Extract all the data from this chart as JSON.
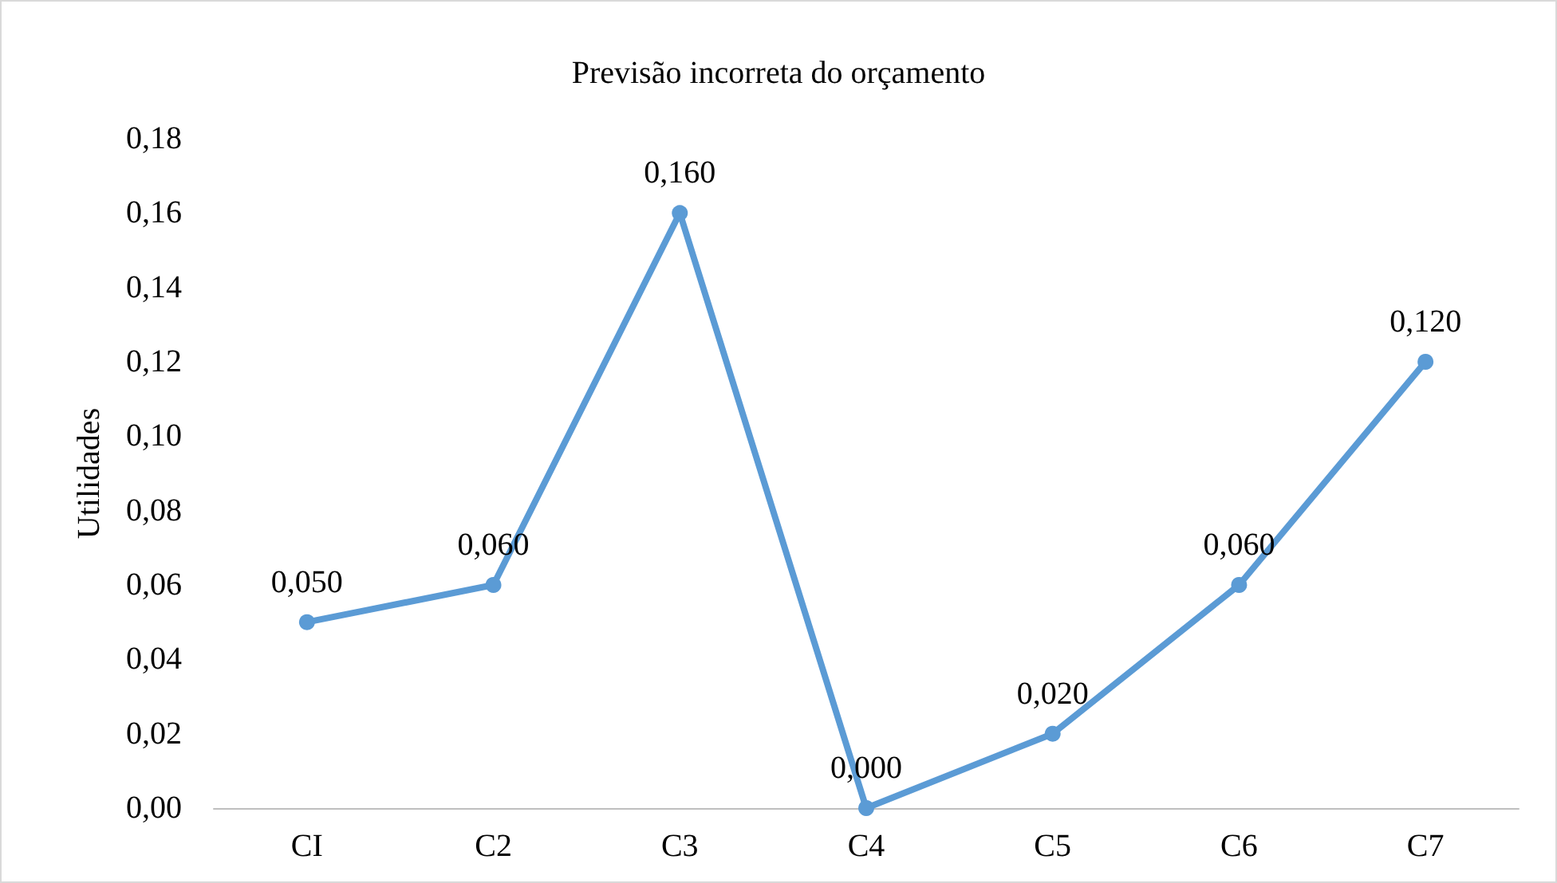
{
  "chart_data": {
    "type": "line",
    "title": "Previsão incorreta do orçamento",
    "ylabel": "Utilidades",
    "categories": [
      "CI",
      "C2",
      "C3",
      "C4",
      "C5",
      "C6",
      "C7"
    ],
    "series": [
      {
        "color": "#5b9bd5",
        "values": [
          0.05,
          0.06,
          0.16,
          0.0,
          0.02,
          0.06,
          0.12
        ],
        "value_labels": [
          "0,050",
          "0,060",
          "0,160",
          "0,000",
          "0,020",
          "0,060",
          "0,120"
        ]
      }
    ],
    "ylim": [
      0,
      0.18
    ],
    "yticks": [
      {
        "value": 0,
        "label": "0,00"
      },
      {
        "value": 0.02,
        "label": "0,02"
      },
      {
        "value": 0.04,
        "label": "0,04"
      },
      {
        "value": 0.06,
        "label": "0,06"
      },
      {
        "value": 0.08,
        "label": "0,08"
      },
      {
        "value": 0.1,
        "label": "0,10"
      },
      {
        "value": 0.12,
        "label": "0,12"
      },
      {
        "value": 0.14,
        "label": "0,14"
      },
      {
        "value": 0.16,
        "label": "0,16"
      },
      {
        "value": 0.18,
        "label": "0,18"
      }
    ],
    "marker": "circle",
    "line_style": "solid",
    "grid": false
  }
}
